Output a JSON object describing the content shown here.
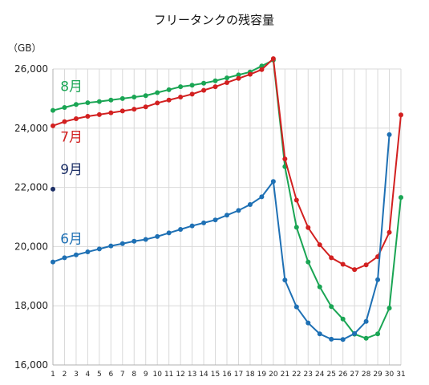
{
  "chart_data": {
    "type": "line",
    "title": "フリータンクの残容量",
    "ylabel": "（GB）",
    "xlabel": "",
    "x": [
      1,
      2,
      3,
      4,
      5,
      6,
      7,
      8,
      9,
      10,
      11,
      12,
      13,
      14,
      15,
      16,
      17,
      18,
      19,
      20,
      21,
      22,
      23,
      24,
      25,
      26,
      27,
      28,
      29,
      30,
      31
    ],
    "x_tick_labels": [
      "1",
      "2",
      "3",
      "4",
      "5",
      "6",
      "7",
      "8",
      "9",
      "10",
      "11",
      "12",
      "13",
      "14",
      "15",
      "16",
      "17",
      "18",
      "19",
      "20",
      "21",
      "22",
      "23",
      "24",
      "25",
      "26",
      "27",
      "28",
      "29",
      "30",
      "31"
    ],
    "ylim": [
      16000,
      26000
    ],
    "y_ticks": [
      16000,
      18000,
      20000,
      22000,
      24000,
      26000
    ],
    "y_tick_labels": [
      "16,000",
      "18,000",
      "20,000",
      "22,000",
      "24,000",
      "26,000"
    ],
    "grid": true,
    "series": [
      {
        "name": "8月",
        "color": "#1aa554",
        "values": [
          24600,
          24700,
          24800,
          24860,
          24900,
          24950,
          25000,
          25050,
          25100,
          25200,
          25300,
          25400,
          25450,
          25520,
          25600,
          25700,
          25800,
          25900,
          26100,
          26300,
          22700,
          20650,
          19480,
          18640,
          17970,
          17550,
          17040,
          16900,
          17050,
          17920,
          21660
        ]
      },
      {
        "name": "7月",
        "color": "#d22020",
        "values": [
          24080,
          24220,
          24320,
          24400,
          24460,
          24520,
          24580,
          24640,
          24720,
          24850,
          24950,
          25050,
          25150,
          25280,
          25400,
          25540,
          25680,
          25820,
          25980,
          26350,
          22960,
          21570,
          20640,
          20060,
          19620,
          19400,
          19220,
          19380,
          19660,
          20480,
          24450
        ]
      },
      {
        "name": "6月",
        "color": "#1e70b4",
        "values": [
          19480,
          19620,
          19720,
          19820,
          19920,
          20020,
          20100,
          20180,
          20240,
          20340,
          20460,
          20580,
          20700,
          20800,
          20900,
          21060,
          21220,
          21420,
          21680,
          22200,
          18870,
          17960,
          17420,
          17050,
          16870,
          16860,
          17060,
          17470,
          18880,
          23780,
          null
        ]
      },
      {
        "name": "9月",
        "color": "#1c2f66",
        "values": [
          21940,
          null,
          null,
          null,
          null,
          null,
          null,
          null,
          null,
          null,
          null,
          null,
          null,
          null,
          null,
          null,
          null,
          null,
          null,
          null,
          null,
          null,
          null,
          null,
          null,
          null,
          null,
          null,
          null,
          null,
          null
        ]
      }
    ]
  }
}
